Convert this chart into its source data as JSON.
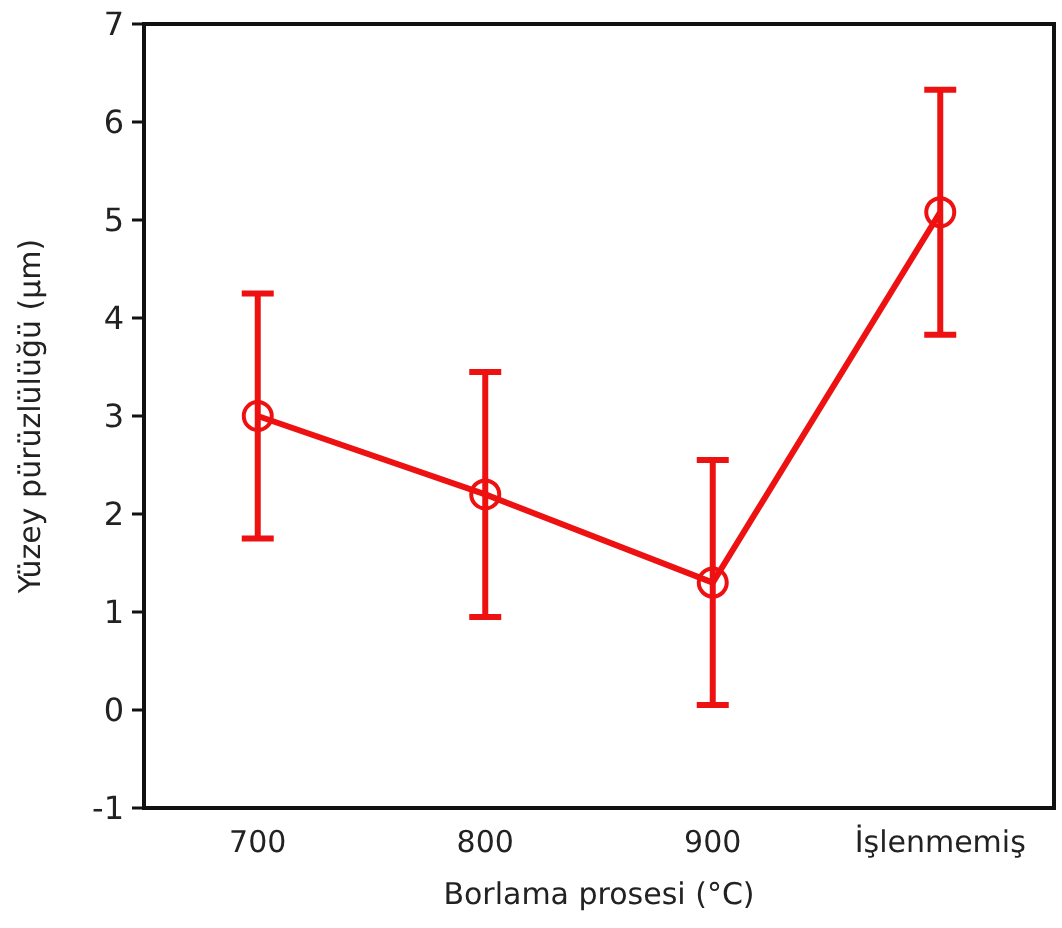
{
  "chart_data": {
    "type": "line",
    "xlabel": "Borlama prosesi (°C)",
    "ylabel": "Yüzey pürüzlülüğü (µm)",
    "categories": [
      "700",
      "800",
      "900",
      "İşlenmemiş"
    ],
    "series": [
      {
        "color": "#ee1111",
        "values": [
          3.0,
          2.2,
          1.3,
          5.08
        ],
        "errors": [
          1.25,
          1.25,
          1.25,
          1.25
        ]
      }
    ],
    "ylim": [
      -1,
      7
    ],
    "yticks": [
      -1,
      0,
      1,
      2,
      3,
      4,
      5,
      6,
      7
    ],
    "marker": "circle",
    "line_style": "solid"
  }
}
